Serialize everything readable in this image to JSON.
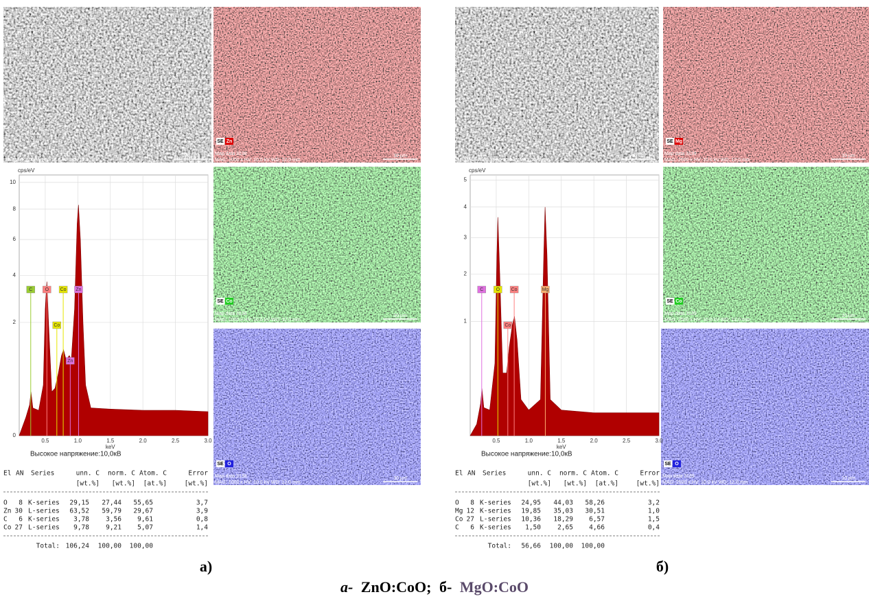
{
  "panels": [
    {
      "label": "а)",
      "images": [
        {
          "kind": "gray",
          "info": "SE MAG: 1000 x HV: 10.0 kV WD: 12.0 mm",
          "scale": "30 µm"
        },
        {
          "kind": "red",
          "tag": "SE",
          "element": "Zn",
          "map": "Map data 3138",
          "info": "MAG: 1000 x HV: 10.0 kV WD: 12.0 mm",
          "scale": "30 µm"
        },
        {
          "kind": "green",
          "tag": "SE",
          "element": "Co",
          "map": "Map data 3138",
          "info": "MAG: 1000 x HV: 10.0 kV WD: 12.0 mm",
          "scale": "30 µm"
        },
        {
          "kind": "blue",
          "tag": "SE",
          "element": "O",
          "map": "Map data 3138",
          "info": "MAG: 1000 x HV: 10.0 kV WD: 12.0 mm",
          "scale": "30 µm"
        }
      ],
      "table": {
        "header": [
          "El",
          "AN",
          "Series",
          "unn. C",
          "norm. C",
          "Atom. C",
          "Error"
        ],
        "units": [
          "[wt.%]",
          "[wt.%]",
          "[at.%]",
          "[wt.%]"
        ],
        "rows": [
          [
            "O",
            "8",
            "K-series",
            "29,15",
            "27,44",
            "55,65",
            "3,7"
          ],
          [
            "Zn",
            "30",
            "L-series",
            "63,52",
            "59,79",
            "29,67",
            "3,9"
          ],
          [
            "C",
            "6",
            "K-series",
            "3,78",
            "3,56",
            "9,61",
            "0,8"
          ],
          [
            "Co",
            "27",
            "L-series",
            "9,78",
            "9,21",
            "5,07",
            "1,4"
          ]
        ],
        "total": [
          "Total:",
          "106,24",
          "100,00",
          "100,00"
        ]
      }
    },
    {
      "label": "б)",
      "images": [
        {
          "kind": "gray",
          "info": "SE MAG: 2500 x HV: 10.0 kV WD: 12.0 mm",
          "scale": "10 µm"
        },
        {
          "kind": "red",
          "tag": "SE",
          "element": "Mg",
          "map": "Map data 3139",
          "info": "MAG: 2500 x HV: 10.0 kV WD: 12.0 mm",
          "scale": "10 µm"
        },
        {
          "kind": "green",
          "tag": "SE",
          "element": "Co",
          "map": "Map data 3139",
          "info": "MAG: 2500 x HV: 10.0 kV WD: 12.0 mm",
          "scale": "10 µm"
        },
        {
          "kind": "blue",
          "tag": "SE",
          "element": "O",
          "map": "Map data 3139",
          "info": "MAG: 2500 x HV: 10.0 kV WD: 12.0 mm",
          "scale": "10 µm"
        }
      ],
      "table": {
        "header": [
          "El",
          "AN",
          "Series",
          "unn. C",
          "norm. C",
          "Atom. C",
          "Error"
        ],
        "units": [
          "[wt.%]",
          "[wt.%]",
          "[at.%]",
          "[wt.%]"
        ],
        "rows": [
          [
            "O",
            "8",
            "K-series",
            "24,95",
            "44,03",
            "58,26",
            "3,2"
          ],
          [
            "Mg",
            "12",
            "K-series",
            "19,85",
            "35,03",
            "30,51",
            "1,0"
          ],
          [
            "Co",
            "27",
            "L-series",
            "10,36",
            "18,29",
            "6,57",
            "1,5"
          ],
          [
            "C",
            "6",
            "K-series",
            "1,50",
            "2,65",
            "4,66",
            "0,4"
          ]
        ],
        "total": [
          "Total:",
          "56,66",
          "100,00",
          "100,00"
        ]
      }
    }
  ],
  "caption": [
    "а-",
    "ZnO:CoO;",
    "б-",
    "MgO:CoO"
  ],
  "chart_data": [
    {
      "type": "area",
      "y_label": "cps/eV",
      "x_label": "keV",
      "note": "Высокое напряжение:10,0кВ",
      "yscale": "sqrt",
      "grid": true,
      "color": "#b00000",
      "xlim": [
        0.1,
        3.0
      ],
      "ylim": [
        0,
        10.6
      ],
      "xticks": [
        {
          "value": 0.5,
          "label": "0.5"
        },
        {
          "value": 1,
          "label": "1.0"
        },
        {
          "value": 1.5,
          "label": "1.5"
        },
        {
          "value": 2,
          "label": "2.0"
        },
        {
          "value": 2.5,
          "label": "2.5"
        },
        {
          "value": 3,
          "label": "3.0"
        }
      ],
      "yticks": [
        0,
        2,
        4,
        6,
        8,
        10
      ],
      "x": [
        0.1,
        0.2,
        0.26,
        0.28,
        0.31,
        0.4,
        0.47,
        0.5,
        0.525,
        0.55,
        0.6,
        0.65,
        0.7,
        0.75,
        0.78,
        0.82,
        0.87,
        0.9,
        0.95,
        0.99,
        1.01,
        1.04,
        1.08,
        1.12,
        1.2,
        1.5,
        2.0,
        2.5,
        3.0
      ],
      "values": [
        0,
        0.05,
        0.15,
        0.3,
        0.12,
        0.1,
        0.4,
        2.5,
        3.7,
        2.0,
        0.3,
        0.35,
        0.6,
        1.0,
        1.15,
        0.9,
        1.0,
        0.9,
        2.5,
        7.0,
        8.3,
        6.0,
        2.0,
        0.4,
        0.12,
        0.11,
        0.1,
        0.1,
        0.09
      ],
      "peak_labels": [
        {
          "label": "C",
          "x": 0.277,
          "color": "#9acd32"
        },
        {
          "label": "O",
          "x": 0.525,
          "color": "#ff8080"
        },
        {
          "label": "Co",
          "x": 0.776,
          "color": "#e6e600"
        },
        {
          "label": "Zn",
          "x": 1.012,
          "color": "#e070e0"
        },
        {
          "label": "Co",
          "x": 0.678,
          "color": "#e6e600"
        },
        {
          "label": "Zn",
          "x": 0.884,
          "color": "#e070e0"
        }
      ]
    },
    {
      "type": "area",
      "y_label": "cps/eV",
      "x_label": "keV",
      "note": "Высокое напряжение:10,0кВ",
      "yscale": "sqrt",
      "grid": true,
      "color": "#b00000",
      "xlim": [
        0.1,
        3.0
      ],
      "ylim": [
        0,
        5.2
      ],
      "xticks": [
        {
          "value": 0.5,
          "label": "0.5"
        },
        {
          "value": 1,
          "label": "1.0"
        },
        {
          "value": 1.5,
          "label": "1.5"
        },
        {
          "value": 2,
          "label": "2.0"
        },
        {
          "value": 2.5,
          "label": "2.5"
        },
        {
          "value": 3,
          "label": "3.0"
        }
      ],
      "yticks": [
        1,
        2,
        3,
        4,
        5
      ],
      "x": [
        0.1,
        0.2,
        0.26,
        0.28,
        0.31,
        0.4,
        0.48,
        0.51,
        0.525,
        0.55,
        0.6,
        0.66,
        0.7,
        0.75,
        0.78,
        0.82,
        0.88,
        1.0,
        1.18,
        1.23,
        1.25,
        1.28,
        1.33,
        1.5,
        2.0,
        2.5,
        3.0
      ],
      "values": [
        0,
        0.01,
        0.08,
        0.17,
        0.06,
        0.05,
        0.4,
        2.5,
        3.65,
        2.2,
        0.3,
        0.3,
        0.6,
        0.95,
        1.09,
        0.7,
        0.1,
        0.05,
        0.1,
        2.5,
        4.0,
        2.5,
        0.1,
        0.05,
        0.04,
        0.04,
        0.04
      ],
      "peak_labels": [
        {
          "label": "C",
          "x": 0.277,
          "color": "#e070e0"
        },
        {
          "label": "O",
          "x": 0.525,
          "color": "#e6e600"
        },
        {
          "label": "Co",
          "x": 0.776,
          "color": "#ff8080"
        },
        {
          "label": "Mg",
          "x": 1.254,
          "color": "#ffb070"
        },
        {
          "label": "Co",
          "x": 0.678,
          "color": "#ff8080"
        }
      ]
    }
  ]
}
